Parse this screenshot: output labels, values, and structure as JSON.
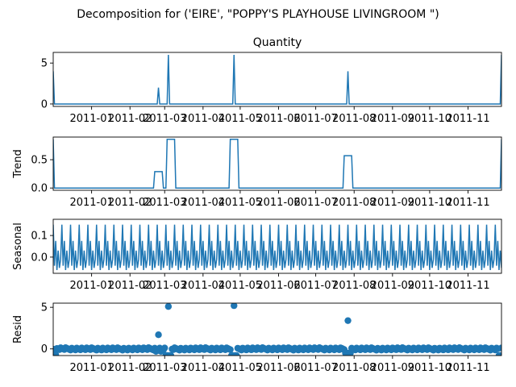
{
  "figure": {
    "suptitle": "Decomposition for ('EIRE', \"POPPY'S PLAYHOUSE LIVINGROOM \")",
    "line_color": "#1f77b4"
  },
  "chart_data": [
    {
      "type": "line",
      "title": "Quantity",
      "ylabel": "",
      "x_range": [
        "2010-12-01",
        "2011-11-28"
      ],
      "ylim": [
        -0.3,
        6.3
      ],
      "yticks": [
        0,
        5
      ],
      "xticks": [
        "2011-01",
        "2011-02",
        "2011-03",
        "2011-04",
        "2011-05",
        "2011-06",
        "2011-07",
        "2011-08",
        "2011-09",
        "2011-10",
        "2011-11"
      ],
      "baseline": 0,
      "spikes": [
        {
          "date": "2010-12-01",
          "value": 4
        },
        {
          "date": "2011-02-24",
          "value": 2
        },
        {
          "date": "2011-03-04",
          "value": 6
        },
        {
          "date": "2011-04-26",
          "value": 6
        },
        {
          "date": "2011-07-27",
          "value": 4
        },
        {
          "date": "2011-11-28",
          "value": 6
        }
      ]
    },
    {
      "type": "line",
      "title": "",
      "ylabel": "Trend",
      "x_range": [
        "2010-12-01",
        "2011-11-28"
      ],
      "ylim": [
        -0.04,
        0.9
      ],
      "yticks": [
        0.0,
        0.5
      ],
      "xticks": [
        "2011-01",
        "2011-02",
        "2011-03",
        "2011-04",
        "2011-05",
        "2011-06",
        "2011-07",
        "2011-08",
        "2011-09",
        "2011-10",
        "2011-11"
      ],
      "baseline": 0,
      "edge_values": [
        {
          "date": "2010-12-01",
          "value": 0.86
        },
        {
          "date": "2011-11-28",
          "value": 0.86
        }
      ],
      "plateaus": [
        {
          "start": "2011-02-21",
          "end": "2011-02-27",
          "value": 0.29
        },
        {
          "start": "2011-03-03",
          "end": "2011-03-09",
          "value": 0.86
        },
        {
          "start": "2011-04-23",
          "end": "2011-04-29",
          "value": 0.86
        },
        {
          "start": "2011-07-24",
          "end": "2011-07-30",
          "value": 0.57
        }
      ]
    },
    {
      "type": "line",
      "title": "",
      "ylabel": "Seasonal",
      "x_range": [
        "2010-12-01",
        "2011-11-28"
      ],
      "ylim": [
        -0.075,
        0.175
      ],
      "yticks": [
        0.0,
        0.1
      ],
      "xticks": [
        "2011-01",
        "2011-02",
        "2011-03",
        "2011-04",
        "2011-05",
        "2011-06",
        "2011-07",
        "2011-08",
        "2011-09",
        "2011-10",
        "2011-11"
      ],
      "period_days": 7,
      "weekly_pattern": [
        0.15,
        -0.04,
        0.075,
        -0.06,
        0.03,
        -0.05,
        -0.01
      ]
    },
    {
      "type": "scatter",
      "title": "",
      "ylabel": "Resid",
      "x_range": [
        "2010-12-01",
        "2011-11-28"
      ],
      "ylim": [
        -0.8,
        5.5
      ],
      "yticks": [
        0,
        5
      ],
      "xticks": [
        "2011-01",
        "2011-02",
        "2011-03",
        "2011-04",
        "2011-05",
        "2011-06",
        "2011-07",
        "2011-08",
        "2011-09",
        "2011-10",
        "2011-11"
      ],
      "background_range": [
        -0.15,
        0.15
      ],
      "outliers": [
        {
          "date": "2010-12-03",
          "value": -0.7
        },
        {
          "date": "2011-02-22",
          "value": -0.3
        },
        {
          "date": "2011-02-24",
          "value": 1.7
        },
        {
          "date": "2011-02-26",
          "value": -0.3
        },
        {
          "date": "2011-03-02",
          "value": -0.8
        },
        {
          "date": "2011-03-03",
          "value": -0.8
        },
        {
          "date": "2011-03-04",
          "value": 5.1
        },
        {
          "date": "2011-03-05",
          "value": -0.8
        },
        {
          "date": "2011-03-06",
          "value": -0.8
        },
        {
          "date": "2011-04-24",
          "value": -0.8
        },
        {
          "date": "2011-04-25",
          "value": -0.8
        },
        {
          "date": "2011-04-26",
          "value": 5.2
        },
        {
          "date": "2011-04-27",
          "value": -0.8
        },
        {
          "date": "2011-04-28",
          "value": -0.8
        },
        {
          "date": "2011-07-25",
          "value": -0.5
        },
        {
          "date": "2011-07-26",
          "value": -0.5
        },
        {
          "date": "2011-07-27",
          "value": 3.4
        },
        {
          "date": "2011-07-28",
          "value": -0.5
        },
        {
          "date": "2011-07-29",
          "value": -0.5
        },
        {
          "date": "2011-11-26",
          "value": -0.8
        },
        {
          "date": "2011-11-27",
          "value": -0.8
        }
      ]
    }
  ]
}
